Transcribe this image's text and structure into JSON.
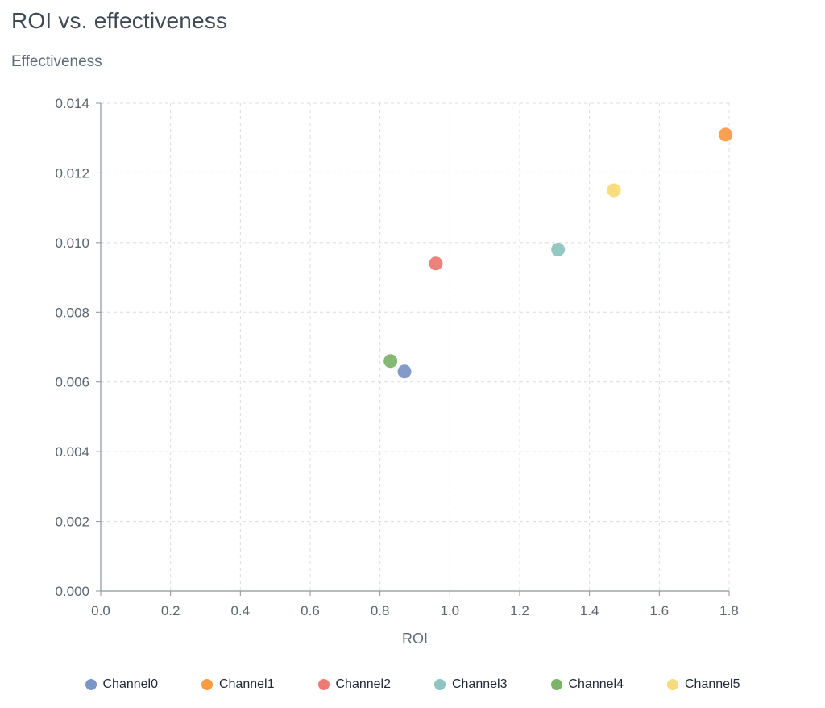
{
  "title": "ROI vs. effectiveness",
  "chart_data": {
    "type": "scatter",
    "title": "ROI vs. effectiveness",
    "xlabel": "ROI",
    "ylabel": "Effectiveness",
    "xlim": [
      0.0,
      1.8
    ],
    "ylim": [
      0.0,
      0.014
    ],
    "grid": true,
    "grid_style": "dashed",
    "legend_position": "bottom",
    "x_ticks": [
      0.0,
      0.2,
      0.4,
      0.6,
      0.8,
      1.0,
      1.2,
      1.4,
      1.6,
      1.8
    ],
    "x_tick_labels": [
      "0.0",
      "0.2",
      "0.4",
      "0.6",
      "0.8",
      "1.0",
      "1.2",
      "1.4",
      "1.6",
      "1.8"
    ],
    "y_ticks": [
      0.0,
      0.002,
      0.004,
      0.006,
      0.008,
      0.01,
      0.012,
      0.014
    ],
    "y_tick_labels": [
      "0.000",
      "0.002",
      "0.004",
      "0.006",
      "0.008",
      "0.010",
      "0.012",
      "0.014"
    ],
    "series": [
      {
        "name": "Channel0",
        "color": "#7b96c6",
        "x": 0.87,
        "y": 0.0063
      },
      {
        "name": "Channel1",
        "color": "#f89c44",
        "x": 1.79,
        "y": 0.0131
      },
      {
        "name": "Channel2",
        "color": "#ec7b76",
        "x": 0.96,
        "y": 0.0094
      },
      {
        "name": "Channel3",
        "color": "#8fc4c0",
        "x": 1.31,
        "y": 0.0098
      },
      {
        "name": "Channel4",
        "color": "#7db46c",
        "x": 0.83,
        "y": 0.0066
      },
      {
        "name": "Channel5",
        "color": "#f5dc78",
        "x": 1.47,
        "y": 0.0115
      }
    ]
  }
}
